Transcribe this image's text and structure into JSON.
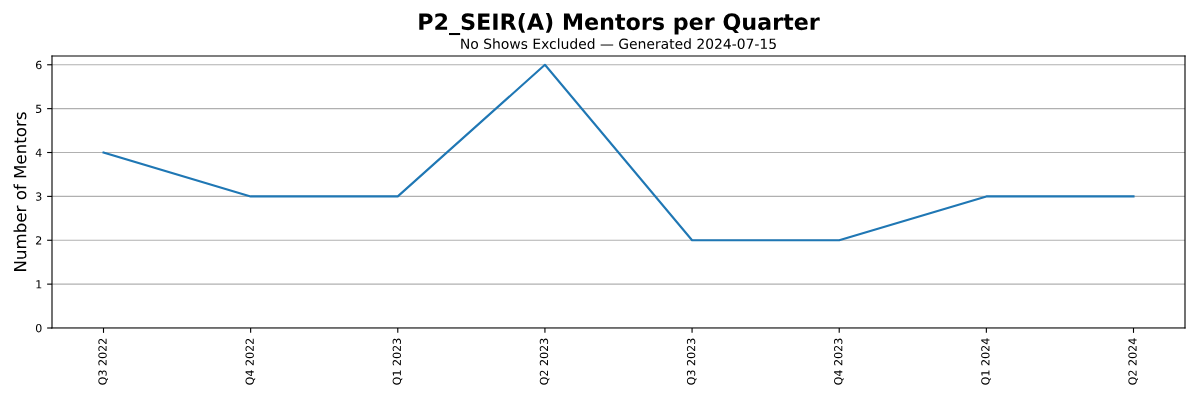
{
  "chart_data": {
    "type": "line",
    "title": "P2_SEIR(A) Mentors per Quarter",
    "subtitle": "No Shows Excluded — Generated 2024-07-15",
    "ylabel": "Number of Mentors",
    "categories": [
      "Q3 2022",
      "Q4 2022",
      "Q1 2023",
      "Q2 2023",
      "Q3 2023",
      "Q4 2023",
      "Q1 2024",
      "Q2 2024"
    ],
    "series": [
      {
        "color": "#1f77b4",
        "values": [
          4,
          3,
          3,
          6,
          2,
          2,
          3,
          3
        ]
      }
    ],
    "ylim": [
      0,
      6.2
    ],
    "yticks": [
      0,
      1,
      2,
      3,
      4,
      5,
      6
    ],
    "grid": "y",
    "marker": "none",
    "line_style": "solid"
  }
}
